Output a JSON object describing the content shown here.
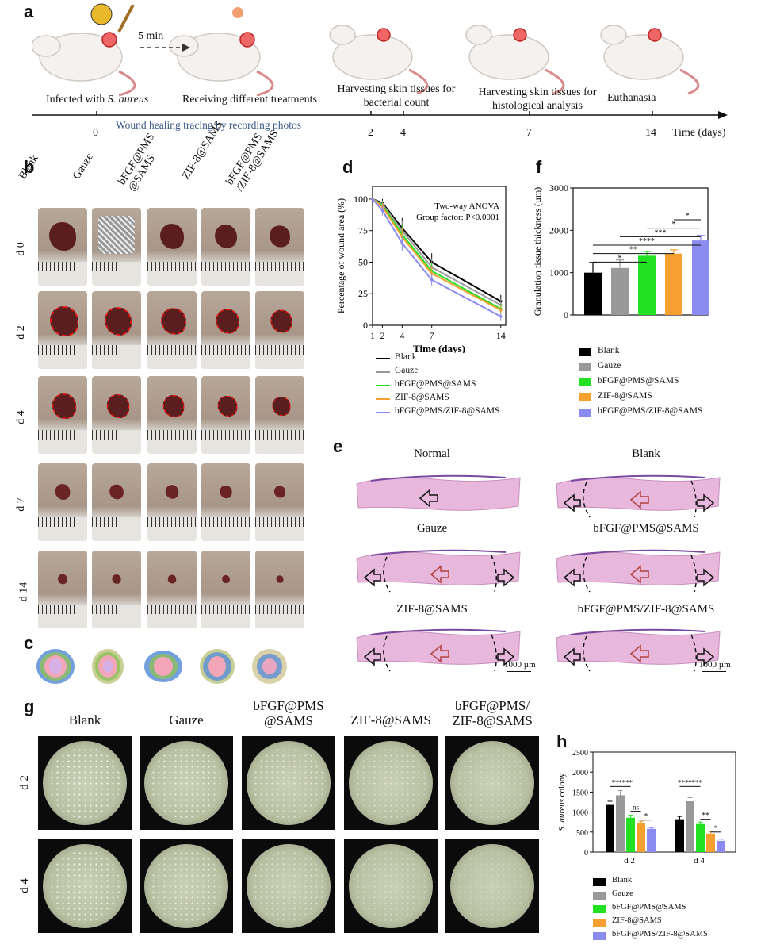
{
  "panels": {
    "a": "a",
    "b": "b",
    "c": "c",
    "d": "d",
    "e": "e",
    "f": "f",
    "g": "g",
    "h": "h"
  },
  "timeline": {
    "infected_prefix": "Infected with ",
    "infected_species": "S. aureus",
    "five_min": "5 min",
    "receiving": "Receiving different treatments",
    "harvest_bact": [
      "Harvesting skin tissues for",
      "bacterial count"
    ],
    "harvest_hist": [
      "Harvesting skin tissues for",
      "histological analysis"
    ],
    "euthanasia": "Euthanasia",
    "tracing": "Wound healing tracing by recording photos",
    "ticks": [
      "0",
      "2",
      "4",
      "7",
      "14"
    ],
    "axis_label": "Time (days)"
  },
  "photo_grid": {
    "columns": [
      "Blank",
      "Gauze",
      "bFGF@PMS\n@SAMS",
      "ZIF-8@SAMS",
      "bFGF@PMS\n/ZIF-8@SAMS"
    ],
    "rows": [
      "d 0",
      "d 2",
      "d 4",
      "d 7",
      "d 14"
    ]
  },
  "histology": {
    "titles": [
      "Normal",
      "Blank",
      "Gauze",
      "bFGF@PMS@SAMS",
      "ZIF-8@SAMS",
      "bFGF@PMS/ZIF-8@SAMS"
    ],
    "scale_bar": "1000 µm"
  },
  "plates": {
    "columns": [
      "Blank",
      "Gauze",
      "bFGF@PMS\n@SAMS",
      "ZIF-8@SAMS",
      "bFGF@PMS/\nZIF-8@SAMS"
    ],
    "rows": [
      "d 2",
      "d 4"
    ]
  },
  "colors": {
    "Blank": "#000000",
    "Gauze": "#999999",
    "bFGF@PMS@SAMS": "#22e022",
    "ZIF-8@SAMS": "#f5a030",
    "bFGF@PMS/ZIF-8@SAMS": "#8a8af0"
  },
  "chart_data": [
    {
      "panel": "d",
      "type": "line",
      "xlabel": "Time (days)",
      "ylabel": "Percentage of wound area (%)",
      "xticks": [
        1,
        2,
        4,
        7,
        14
      ],
      "yticks": [
        0,
        25,
        50,
        75,
        100
      ],
      "xlim": [
        1,
        14.5
      ],
      "ylim": [
        0,
        110
      ],
      "annotation": [
        "Two-way ANOVA",
        "Group factor: P<0.0001"
      ],
      "x": [
        1,
        2,
        4,
        7,
        14
      ],
      "series": [
        {
          "name": "Blank",
          "color": "#000000",
          "values": [
            100,
            97,
            77,
            50,
            19
          ],
          "err": [
            0,
            3,
            8,
            7,
            5
          ]
        },
        {
          "name": "Gauze",
          "color": "#999999",
          "values": [
            100,
            96,
            75,
            46,
            16
          ],
          "err": [
            0,
            3,
            8,
            7,
            5
          ]
        },
        {
          "name": "bFGF@PMS@SAMS",
          "color": "#22e022",
          "values": [
            100,
            95,
            72,
            43,
            13
          ],
          "err": [
            0,
            3,
            7,
            6,
            4
          ]
        },
        {
          "name": "ZIF-8@SAMS",
          "color": "#f5a030",
          "values": [
            100,
            94,
            70,
            41,
            12
          ],
          "err": [
            0,
            3,
            7,
            6,
            4
          ]
        },
        {
          "name": "bFGF@PMS/ZIF-8@SAMS",
          "color": "#8a8af0",
          "values": [
            100,
            91,
            65,
            36,
            7
          ],
          "err": [
            0,
            4,
            6,
            5,
            3
          ]
        }
      ]
    },
    {
      "panel": "f",
      "type": "bar",
      "ylabel": "Granulation tissue thickness (µm)",
      "yticks": [
        0,
        1000,
        2000,
        3000
      ],
      "ylim": [
        0,
        3000
      ],
      "categories": [
        "Blank",
        "Gauze",
        "bFGF@PMS@SAMS",
        "ZIF-8@SAMS",
        "bFGF@PMS/ZIF-8@SAMS"
      ],
      "values": [
        1000,
        1110,
        1400,
        1450,
        1760
      ],
      "err": [
        240,
        190,
        100,
        90,
        120
      ],
      "significance": [
        "*",
        "**",
        "****",
        "***",
        "*",
        "*"
      ]
    },
    {
      "panel": "h",
      "type": "bar",
      "ylabel_species": "S. aureus",
      "ylabel_rest": " colony",
      "yticks": [
        0,
        500,
        1000,
        1500,
        2000,
        2500
      ],
      "ylim": [
        0,
        2500
      ],
      "categories": [
        "d 2",
        "d 4"
      ],
      "series": [
        {
          "name": "Blank",
          "color": "#000000",
          "values": [
            1180,
            820
          ],
          "err": [
            90,
            70
          ]
        },
        {
          "name": "Gauze",
          "color": "#999999",
          "values": [
            1420,
            1270
          ],
          "err": [
            120,
            90
          ]
        },
        {
          "name": "bFGF@PMS@SAMS",
          "color": "#22e022",
          "values": [
            860,
            700
          ],
          "err": [
            60,
            50
          ]
        },
        {
          "name": "ZIF-8@SAMS",
          "color": "#f5a030",
          "values": [
            720,
            460
          ],
          "err": [
            50,
            50
          ]
        },
        {
          "name": "bFGF@PMS/ZIF-8@SAMS",
          "color": "#8a8af0",
          "values": [
            580,
            280
          ],
          "err": [
            30,
            40
          ]
        }
      ],
      "significance": [
        "**",
        "****",
        "ns",
        "*",
        "****",
        "****",
        "**",
        "*"
      ]
    }
  ]
}
